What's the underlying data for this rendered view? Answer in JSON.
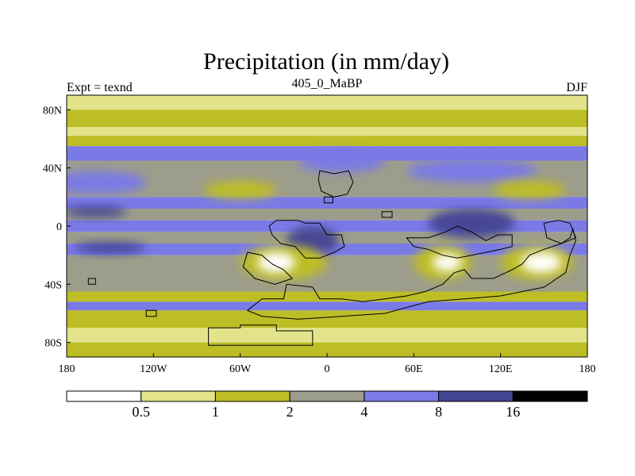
{
  "chart_data": {
    "type": "heatmap",
    "title": "Precipitation (in mm/day)",
    "subtitle_left": "Expt = texnd",
    "subtitle_center": "405_0_MaBP",
    "subtitle_right": "DJF",
    "x_range": [
      -180,
      180
    ],
    "y_range": [
      -90,
      90
    ],
    "x_ticks": [
      {
        "value": -180,
        "label": "180"
      },
      {
        "value": -120,
        "label": "120W"
      },
      {
        "value": -60,
        "label": "60W"
      },
      {
        "value": 0,
        "label": "0"
      },
      {
        "value": 60,
        "label": "60E"
      },
      {
        "value": 120,
        "label": "120E"
      },
      {
        "value": 180,
        "label": "180"
      }
    ],
    "y_ticks": [
      {
        "value": 80,
        "label": "80N"
      },
      {
        "value": 40,
        "label": "40N"
      },
      {
        "value": 0,
        "label": "0"
      },
      {
        "value": -40,
        "label": "40S"
      },
      {
        "value": -80,
        "label": "80S"
      }
    ],
    "colorbar": {
      "boundaries": [
        "0.5",
        "1",
        "2",
        "4",
        "8",
        "16"
      ],
      "colors": [
        "#ffffff",
        "#e3e38b",
        "#bdbd25",
        "#9d9d8c",
        "#7a7ae6",
        "#464696",
        "#000000"
      ]
    },
    "bands": [
      {
        "lat_min": 80,
        "lat_max": 90,
        "class": 1
      },
      {
        "lat_min": 68,
        "lat_max": 80,
        "class": 2
      },
      {
        "lat_min": 62,
        "lat_max": 68,
        "class": 1
      },
      {
        "lat_min": 55,
        "lat_max": 62,
        "class": 2
      },
      {
        "lat_min": 45,
        "lat_max": 55,
        "class": 4
      },
      {
        "lat_min": 20,
        "lat_max": 45,
        "class": 3
      },
      {
        "lat_min": 12,
        "lat_max": 20,
        "class": 4
      },
      {
        "lat_min": 4,
        "lat_max": 12,
        "class": 3
      },
      {
        "lat_min": -4,
        "lat_max": 4,
        "class": 4
      },
      {
        "lat_min": -12,
        "lat_max": -4,
        "class": 3
      },
      {
        "lat_min": -20,
        "lat_max": -12,
        "class": 4
      },
      {
        "lat_min": -45,
        "lat_max": -20,
        "class": 3
      },
      {
        "lat_min": -52,
        "lat_max": -45,
        "class": 2
      },
      {
        "lat_min": -58,
        "lat_max": -52,
        "class": 4
      },
      {
        "lat_min": -70,
        "lat_max": -58,
        "class": 2
      },
      {
        "lat_min": -80,
        "lat_max": -70,
        "class": 1
      },
      {
        "lat_min": -90,
        "lat_max": -80,
        "class": 2
      }
    ],
    "regions": [
      {
        "name": "north-pacific-wet",
        "class": 4,
        "lon": -160,
        "lat": 30,
        "rx": 35,
        "ry": 8
      },
      {
        "name": "north-atlantic-wet",
        "class": 4,
        "lon": 10,
        "lat": 44,
        "rx": 30,
        "ry": 7
      },
      {
        "name": "north-asia-wet",
        "class": 4,
        "lon": 100,
        "lat": 38,
        "rx": 45,
        "ry": 8
      },
      {
        "name": "north-dry-60w",
        "class": 2,
        "lon": -60,
        "lat": 25,
        "rx": 25,
        "ry": 6
      },
      {
        "name": "north-dry-120e",
        "class": 2,
        "lon": 140,
        "lat": 25,
        "rx": 25,
        "ry": 6
      },
      {
        "name": "tropical-pacific-wet",
        "class": 5,
        "lon": -160,
        "lat": 10,
        "rx": 22,
        "ry": 4
      },
      {
        "name": "amazon-wet",
        "class": 5,
        "lon": -10,
        "lat": -10,
        "rx": 18,
        "ry": 10
      },
      {
        "name": "indonesia-wet",
        "class": 5,
        "lon": 100,
        "lat": 2,
        "rx": 30,
        "ry": 10
      },
      {
        "name": "south-pacific-wet",
        "class": 5,
        "lon": -150,
        "lat": -15,
        "rx": 25,
        "ry": 4
      },
      {
        "name": "south-atlantic-dry",
        "class": 2,
        "lon": -30,
        "lat": -25,
        "rx": 30,
        "ry": 12
      },
      {
        "name": "south-atlantic-driest",
        "class": 0,
        "lon": -35,
        "lat": -25,
        "rx": 13,
        "ry": 7
      },
      {
        "name": "south-indian-dry",
        "class": 2,
        "lon": 80,
        "lat": -25,
        "rx": 20,
        "ry": 12
      },
      {
        "name": "south-indian-driest",
        "class": 0,
        "lon": 83,
        "lat": -25,
        "rx": 10,
        "ry": 6
      },
      {
        "name": "australia-dry",
        "class": 2,
        "lon": 145,
        "lat": -25,
        "rx": 25,
        "ry": 12
      },
      {
        "name": "australia-driest",
        "class": 0,
        "lon": 148,
        "lat": -25,
        "rx": 14,
        "ry": 7
      }
    ],
    "landmasses": [
      {
        "name": "antarctica",
        "points": [
          [
            -82,
            -70
          ],
          [
            -60,
            -70
          ],
          [
            -60,
            -68
          ],
          [
            -35,
            -68
          ],
          [
            -35,
            -72
          ],
          [
            -10,
            -72
          ],
          [
            -10,
            -82
          ],
          [
            -82,
            -82
          ]
        ]
      },
      {
        "name": "south-gondwana",
        "points": [
          [
            -55,
            -58
          ],
          [
            -45,
            -50
          ],
          [
            -30,
            -50
          ],
          [
            -28,
            -40
          ],
          [
            -10,
            -42
          ],
          [
            -5,
            -50
          ],
          [
            10,
            -50
          ],
          [
            25,
            -52
          ],
          [
            40,
            -50
          ],
          [
            55,
            -48
          ],
          [
            68,
            -45
          ],
          [
            80,
            -40
          ],
          [
            88,
            -32
          ],
          [
            95,
            -30
          ],
          [
            100,
            -36
          ],
          [
            115,
            -36
          ],
          [
            128,
            -30
          ],
          [
            135,
            -26
          ],
          [
            140,
            -20
          ],
          [
            150,
            -16
          ],
          [
            162,
            -12
          ],
          [
            168,
            -8
          ],
          [
            170,
            -2
          ],
          [
            172,
            -10
          ],
          [
            168,
            -20
          ],
          [
            165,
            -32
          ],
          [
            150,
            -42
          ],
          [
            120,
            -48
          ],
          [
            95,
            -50
          ],
          [
            70,
            -52
          ],
          [
            40,
            -60
          ],
          [
            10,
            -62
          ],
          [
            -20,
            -64
          ],
          [
            -45,
            -62
          ]
        ]
      },
      {
        "name": "east-continent",
        "points": [
          [
            55,
            -8
          ],
          [
            70,
            -8
          ],
          [
            82,
            -4
          ],
          [
            90,
            0
          ],
          [
            100,
            -4
          ],
          [
            110,
            -10
          ],
          [
            118,
            -6
          ],
          [
            128,
            -6
          ],
          [
            128,
            -14
          ],
          [
            120,
            -16
          ],
          [
            110,
            -18
          ],
          [
            100,
            -20
          ],
          [
            90,
            -22
          ],
          [
            80,
            -20
          ],
          [
            70,
            -16
          ],
          [
            60,
            -14
          ]
        ]
      },
      {
        "name": "west-equatorial-continent",
        "points": [
          [
            -35,
            4
          ],
          [
            -20,
            4
          ],
          [
            -15,
            2
          ],
          [
            -5,
            2
          ],
          [
            0,
            -6
          ],
          [
            10,
            -6
          ],
          [
            12,
            -14
          ],
          [
            5,
            -18
          ],
          [
            -5,
            -22
          ],
          [
            -15,
            -22
          ],
          [
            -22,
            -14
          ],
          [
            -32,
            -12
          ],
          [
            -38,
            -6
          ],
          [
            -40,
            0
          ]
        ]
      },
      {
        "name": "south-america-coast",
        "points": [
          [
            -55,
            -18
          ],
          [
            -45,
            -20
          ],
          [
            -38,
            -26
          ],
          [
            -30,
            -30
          ],
          [
            -24,
            -36
          ],
          [
            -36,
            -40
          ],
          [
            -50,
            -36
          ],
          [
            -58,
            -28
          ]
        ]
      },
      {
        "name": "north-island",
        "points": [
          [
            -5,
            38
          ],
          [
            5,
            36
          ],
          [
            15,
            38
          ],
          [
            18,
            30
          ],
          [
            14,
            22
          ],
          [
            5,
            20
          ],
          [
            -4,
            24
          ],
          [
            -6,
            32
          ]
        ]
      },
      {
        "name": "north-small-island",
        "points": [
          [
            -2,
            20
          ],
          [
            4,
            20
          ],
          [
            4,
            16
          ],
          [
            -2,
            16
          ]
        ]
      },
      {
        "name": "east-small-island",
        "points": [
          [
            38,
            10
          ],
          [
            45,
            10
          ],
          [
            45,
            6
          ],
          [
            38,
            6
          ]
        ]
      },
      {
        "name": "far-east-coast",
        "points": [
          [
            150,
            2
          ],
          [
            160,
            4
          ],
          [
            168,
            2
          ],
          [
            172,
            -8
          ],
          [
            162,
            -12
          ],
          [
            152,
            -8
          ]
        ]
      },
      {
        "name": "small-isle-south",
        "points": [
          [
            -165,
            -36
          ],
          [
            -160,
            -36
          ],
          [
            -160,
            -40
          ],
          [
            -165,
            -40
          ]
        ]
      },
      {
        "name": "small-isle-south2",
        "points": [
          [
            -125,
            -58
          ],
          [
            -118,
            -58
          ],
          [
            -118,
            -62
          ],
          [
            -125,
            -62
          ]
        ]
      }
    ]
  }
}
